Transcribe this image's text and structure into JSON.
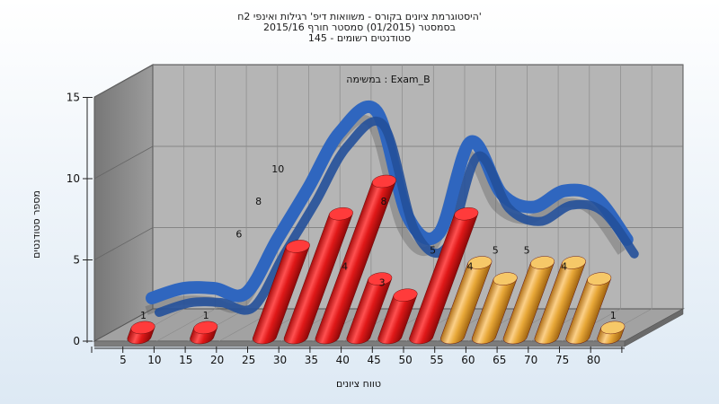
{
  "chart_data": {
    "type": "bar",
    "title_lines": [
      "היסטוגרמת ציונים בקורס - משוואות דיפ' רגילות ואינפי 2ח'",
      "בסמסטר  (01/2015)  סמסטר חורף 2015/16",
      "סטודנטים רשומים - 145"
    ],
    "annotation": "במשימה : Exam_B",
    "xlabel": "טווח ציונים",
    "ylabel": "מספר סטודנטים",
    "ylim": [
      0,
      15
    ],
    "y_ticks": [
      0,
      5,
      10,
      15
    ],
    "x_ticks": [
      5,
      10,
      15,
      20,
      25,
      30,
      35,
      40,
      45,
      50,
      55,
      60,
      65,
      70,
      75,
      80
    ],
    "bars": [
      {
        "x": 5,
        "value": 1,
        "group": "fail"
      },
      {
        "x": 10,
        "value": 0,
        "group": "fail"
      },
      {
        "x": 15,
        "value": 1,
        "group": "fail"
      },
      {
        "x": 20,
        "value": 0,
        "group": "fail"
      },
      {
        "x": 25,
        "value": 6,
        "group": "fail"
      },
      {
        "x": 30,
        "value": 8,
        "group": "fail"
      },
      {
        "x": 35,
        "value": 10,
        "group": "fail"
      },
      {
        "x": 40,
        "value": 4,
        "group": "fail"
      },
      {
        "x": 45,
        "value": 3,
        "group": "fail"
      },
      {
        "x": 50,
        "value": 8,
        "group": "fail"
      },
      {
        "x": 55,
        "value": 5,
        "group": "pass"
      },
      {
        "x": 60,
        "value": 4,
        "group": "pass"
      },
      {
        "x": 65,
        "value": 5,
        "group": "pass"
      },
      {
        "x": 70,
        "value": 5,
        "group": "pass"
      },
      {
        "x": 75,
        "value": 4,
        "group": "pass"
      },
      {
        "x": 80,
        "value": 1,
        "group": "pass"
      }
    ],
    "trend_values": [
      0,
      0.6,
      0.6,
      0.3,
      3.6,
      6.8,
      10.2,
      11.5,
      5,
      4,
      9.6,
      6.4,
      5.6,
      6.6,
      6.2,
      3.6
    ],
    "colors": {
      "fail": "#e82020",
      "pass": "#e8a838",
      "trend": "#2f66bf",
      "wall": "#8a8a8a",
      "back_wall": "#b4b4b4",
      "floor": "#9a9a9a"
    },
    "grid": true
  }
}
